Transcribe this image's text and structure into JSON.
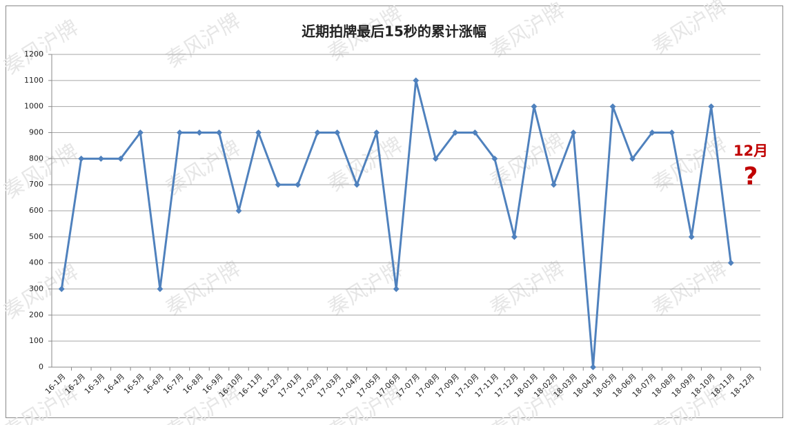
{
  "chart_data": {
    "type": "line",
    "title": "近期拍牌最后15秒的累计涨幅",
    "categories": [
      "16-1月",
      "16-2月",
      "16-3月",
      "16-4月",
      "16-5月",
      "16-6月",
      "16-7月",
      "16-8月",
      "16-9月",
      "16-10月",
      "16-11月",
      "16-12月",
      "17-01月",
      "17-02月",
      "17-03月",
      "17-04月",
      "17-05月",
      "17-06月",
      "17-07月",
      "17-08月",
      "17-09月",
      "17-10月",
      "17-11月",
      "17-12月",
      "18-01月",
      "18-02月",
      "18-03月",
      "18-04月",
      "18-05月",
      "18-06月",
      "18-07月",
      "18-08月",
      "18-09月",
      "18-10月",
      "18-11月",
      "18-12月"
    ],
    "values": [
      300,
      800,
      800,
      800,
      900,
      300,
      900,
      900,
      900,
      600,
      900,
      700,
      700,
      900,
      900,
      700,
      900,
      300,
      1100,
      800,
      900,
      900,
      800,
      500,
      1000,
      700,
      900,
      0,
      1000,
      800,
      900,
      900,
      500,
      1000,
      400,
      null
    ],
    "color": "#4f81bd",
    "ylim": [
      0,
      1200
    ],
    "yticks": [
      0,
      100,
      200,
      300,
      400,
      500,
      600,
      700,
      800,
      900,
      1000,
      1100,
      1200
    ],
    "grid": true,
    "annotations": [
      "12月",
      "?"
    ],
    "annotation_color": "#c00000",
    "watermark": "秦风沪牌"
  }
}
